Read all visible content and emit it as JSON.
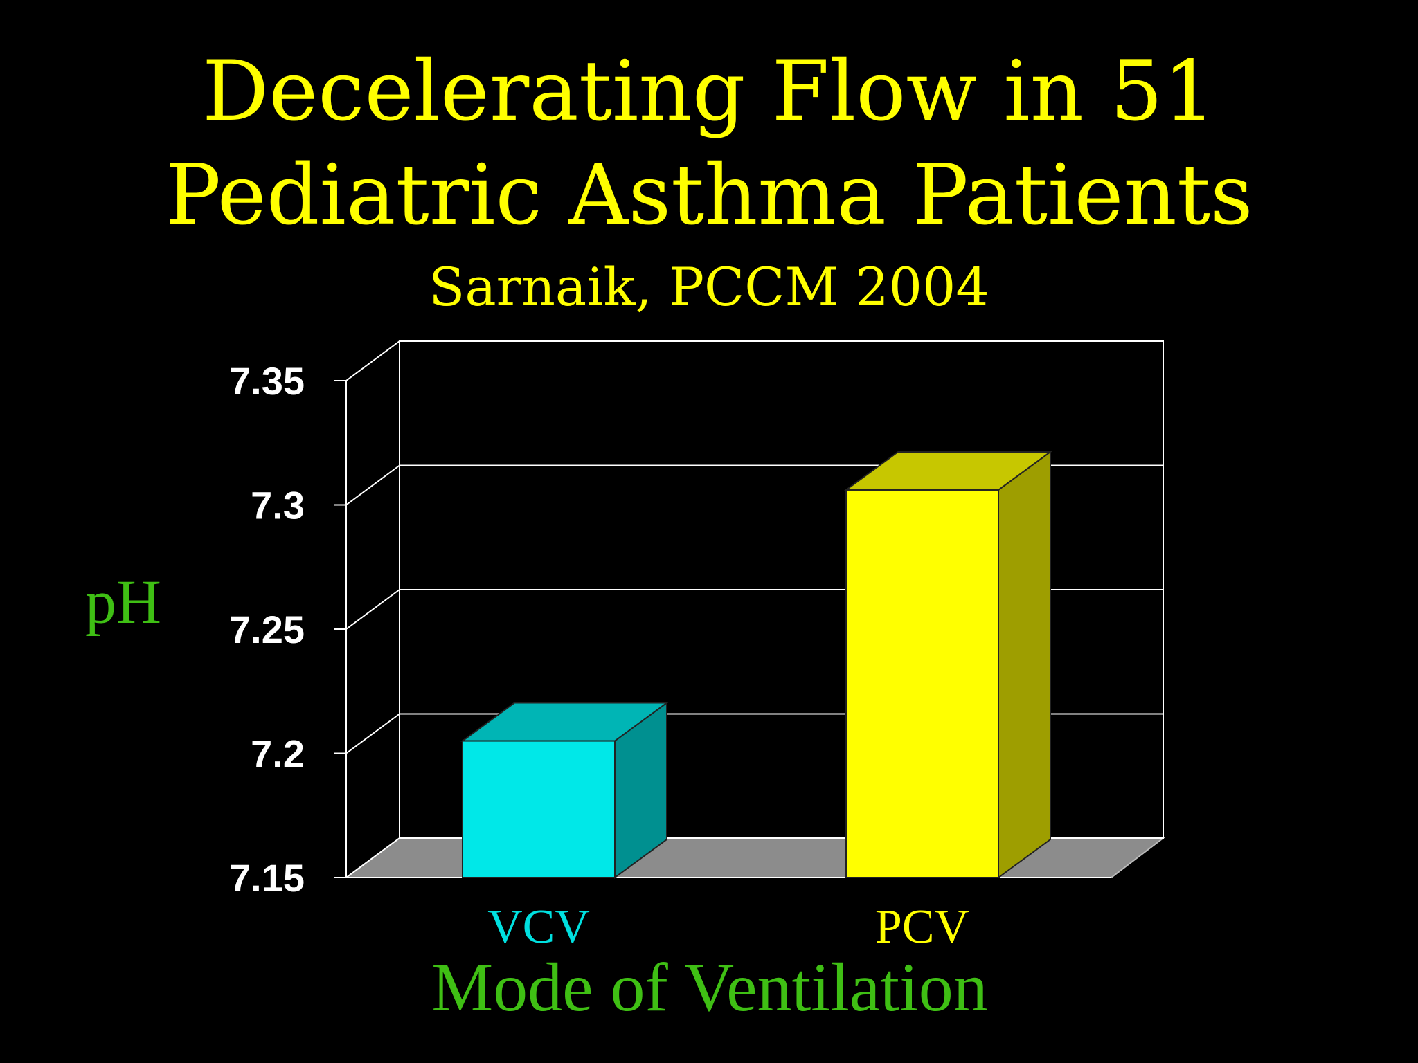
{
  "slide": {
    "title_line1": "Decelerating Flow in 51",
    "title_line2": "Pediatric Asthma Patients",
    "subtitle": "Sarnaik, PCCM 2004"
  },
  "colors": {
    "background": "#000000",
    "title": "#ffff00",
    "axis_title": "#3fbf14",
    "grid": "#ffffff",
    "floor": "#8c8c8c"
  },
  "chart_data": {
    "type": "bar",
    "style": "3d",
    "categories": [
      "VCV",
      "PCV"
    ],
    "series": [
      {
        "values": [
          7.205,
          7.306
        ]
      }
    ],
    "bar_colors": [
      "#00e8e8",
      "#ffff00"
    ],
    "label_colors": [
      "#00e0e0",
      "#ffff00"
    ],
    "xlabel": "Mode of Ventilation",
    "ylabel": "pH",
    "ylim": [
      7.15,
      7.35
    ],
    "yticks": [
      7.15,
      7.2,
      7.25,
      7.3,
      7.35
    ],
    "ytick_labels": [
      "7.15",
      "7.2",
      "7.25",
      "7.3",
      "7.35"
    ],
    "grid": true
  }
}
